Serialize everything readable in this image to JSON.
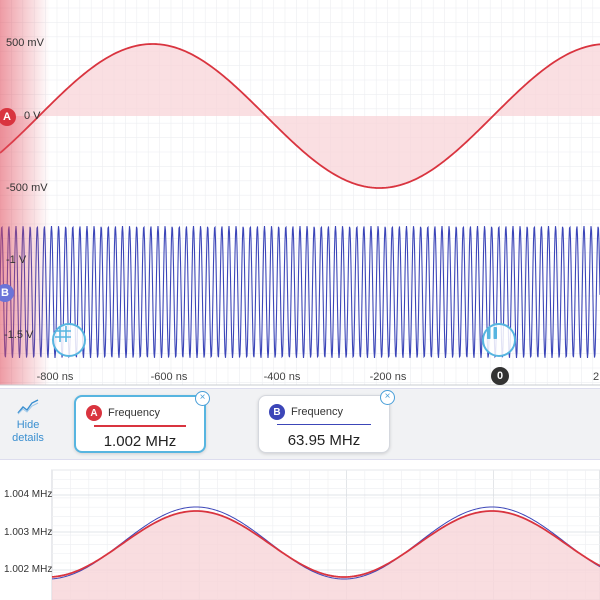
{
  "channel_a": {
    "badge": "A",
    "color": "#d9343f",
    "fill": "#f8d4d8",
    "labels": [
      "500 mV",
      "0 V",
      "-500 mV"
    ]
  },
  "channel_b": {
    "badge": "B",
    "color": "#3c46b8",
    "labels": [
      "-1 V",
      "-1.5 V"
    ]
  },
  "time_axis": {
    "ticks": [
      "-800 ns",
      "-600 ns",
      "-400 ns",
      "-200 ns",
      "2"
    ]
  },
  "trigger": {
    "label": "0"
  },
  "buttons": {
    "hide_details": "Hide details"
  },
  "measurements": [
    {
      "channel": "A",
      "title": "Frequency",
      "value": "1.002 MHz",
      "close": "×"
    },
    {
      "channel": "B",
      "title": "Frequency",
      "value": "63.95 MHz",
      "close": "×"
    }
  ],
  "zoom_plot": {
    "y_ticks": [
      "1.004 MHz",
      "1.003 MHz",
      "1.002 MHz"
    ]
  },
  "icons": {
    "grid": "grid-icon",
    "pause": "pause-icon",
    "trend": "trend-icon"
  }
}
